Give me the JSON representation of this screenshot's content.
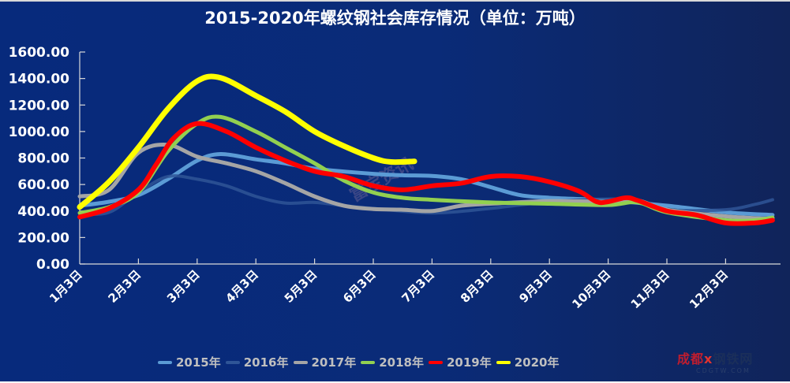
{
  "chart_data": {
    "type": "line",
    "title": "2015-2020年螺纹钢社会库存情况（单位：万吨）",
    "xlabel": "",
    "ylabel": "",
    "unit": "万吨",
    "ylim": [
      0,
      1600
    ],
    "yticks": [
      "0.00",
      "200.00",
      "400.00",
      "600.00",
      "800.00",
      "1000.00",
      "1200.00",
      "1400.00",
      "1600.00"
    ],
    "ytick_values": [
      0,
      200,
      400,
      600,
      800,
      1000,
      1200,
      1400,
      1600
    ],
    "xlim_months_from_jan3": [
      0,
      11.8
    ],
    "xticks": [
      "1月3日",
      "2月3日",
      "3月3日",
      "4月3日",
      "5月3日",
      "6月3日",
      "7月3日",
      "8月3日",
      "9月3日",
      "10月3日",
      "11月3日",
      "12月3日"
    ],
    "x_unit": "months since 1月3日",
    "grid": false,
    "legend_position": "bottom",
    "series": [
      {
        "name": "2015年",
        "color": "#5b9bd5",
        "points": [
          [
            0,
            440
          ],
          [
            0.5,
            470
          ],
          [
            1,
            520
          ],
          [
            1.5,
            640
          ],
          [
            2,
            780
          ],
          [
            2.4,
            830
          ],
          [
            3,
            790
          ],
          [
            3.5,
            760
          ],
          [
            4,
            720
          ],
          [
            5,
            680
          ],
          [
            5.5,
            670
          ],
          [
            6,
            665
          ],
          [
            6.5,
            640
          ],
          [
            7,
            580
          ],
          [
            7.5,
            520
          ],
          [
            8,
            500
          ],
          [
            9,
            480
          ],
          [
            10,
            440
          ],
          [
            11,
            390
          ],
          [
            11.8,
            370
          ]
        ]
      },
      {
        "name": "2016年",
        "color": "#2f5597",
        "points": [
          [
            0,
            380
          ],
          [
            0.5,
            390
          ],
          [
            1,
            540
          ],
          [
            1.5,
            660
          ],
          [
            2,
            640
          ],
          [
            2.5,
            590
          ],
          [
            3,
            510
          ],
          [
            3.5,
            460
          ],
          [
            4,
            465
          ],
          [
            4.5,
            440
          ],
          [
            5,
            420
          ],
          [
            6,
            385
          ],
          [
            7,
            420
          ],
          [
            8,
            470
          ],
          [
            9,
            490
          ],
          [
            9.5,
            480
          ],
          [
            10,
            410
          ],
          [
            11,
            410
          ],
          [
            11.5,
            450
          ],
          [
            11.8,
            485
          ]
        ]
      },
      {
        "name": "2017年",
        "color": "#a5a5a5",
        "points": [
          [
            0,
            510
          ],
          [
            0.5,
            560
          ],
          [
            1,
            840
          ],
          [
            1.5,
            900
          ],
          [
            2,
            810
          ],
          [
            2.5,
            760
          ],
          [
            3,
            700
          ],
          [
            3.5,
            610
          ],
          [
            4,
            510
          ],
          [
            4.5,
            440
          ],
          [
            5,
            415
          ],
          [
            5.5,
            410
          ],
          [
            6,
            400
          ],
          [
            6.5,
            440
          ],
          [
            7,
            455
          ],
          [
            8,
            475
          ],
          [
            9,
            470
          ],
          [
            9.5,
            480
          ],
          [
            10,
            410
          ],
          [
            11,
            360
          ],
          [
            11.8,
            340
          ]
        ]
      },
      {
        "name": "2018年",
        "color": "#92d050",
        "points": [
          [
            0,
            385
          ],
          [
            0.5,
            430
          ],
          [
            1,
            540
          ],
          [
            1.5,
            850
          ],
          [
            2,
            1060
          ],
          [
            2.4,
            1110
          ],
          [
            3,
            1000
          ],
          [
            3.5,
            880
          ],
          [
            4,
            760
          ],
          [
            4.5,
            630
          ],
          [
            5,
            540
          ],
          [
            5.5,
            500
          ],
          [
            6,
            485
          ],
          [
            7,
            465
          ],
          [
            8,
            455
          ],
          [
            9,
            445
          ],
          [
            9.5,
            465
          ],
          [
            10,
            390
          ],
          [
            11,
            330
          ],
          [
            11.5,
            330
          ],
          [
            11.8,
            350
          ]
        ]
      },
      {
        "name": "2019年",
        "color": "#ff0000",
        "points": [
          [
            0,
            355
          ],
          [
            0.5,
            420
          ],
          [
            1,
            560
          ],
          [
            1.3,
            750
          ],
          [
            1.6,
            950
          ],
          [
            2,
            1060
          ],
          [
            2.5,
            1000
          ],
          [
            3,
            880
          ],
          [
            3.5,
            780
          ],
          [
            4,
            700
          ],
          [
            4.5,
            660
          ],
          [
            5,
            590
          ],
          [
            5.5,
            560
          ],
          [
            6,
            590
          ],
          [
            6.5,
            610
          ],
          [
            7,
            660
          ],
          [
            7.5,
            660
          ],
          [
            8,
            620
          ],
          [
            8.5,
            550
          ],
          [
            8.8,
            470
          ],
          [
            9,
            470
          ],
          [
            9.3,
            500
          ],
          [
            9.5,
            480
          ],
          [
            10,
            400
          ],
          [
            10.5,
            370
          ],
          [
            11,
            310
          ],
          [
            11.5,
            310
          ],
          [
            11.8,
            330
          ]
        ]
      },
      {
        "name": "2020年",
        "color": "#ffff00",
        "points": [
          [
            0,
            430
          ],
          [
            0.5,
            620
          ],
          [
            1,
            880
          ],
          [
            1.5,
            1170
          ],
          [
            2,
            1380
          ],
          [
            2.4,
            1405
          ],
          [
            3,
            1270
          ],
          [
            3.5,
            1150
          ],
          [
            4,
            1000
          ],
          [
            4.5,
            890
          ],
          [
            5,
            800
          ],
          [
            5.3,
            770
          ],
          [
            5.7,
            775
          ]
        ]
      }
    ]
  },
  "watermark": {
    "brand": "成都",
    "brand_rest": "钢铁网",
    "x_mark": "x",
    "sub": "CDGTW.COM",
    "center": "富宝资讯"
  }
}
